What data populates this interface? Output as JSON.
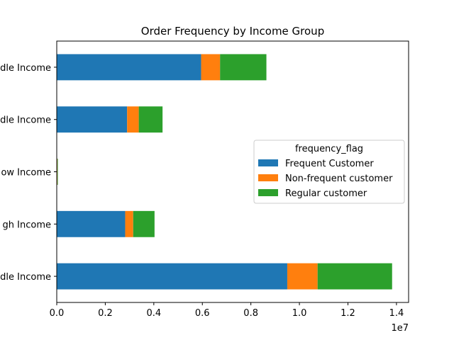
{
  "chart_data": {
    "type": "bar",
    "orientation": "horizontal",
    "stacked": true,
    "title": "Order Frequency by Income Group",
    "xlabel": "",
    "ylabel": "",
    "x_offset_label": "1e7",
    "xlim": [
      0,
      14500000
    ],
    "x_ticks": [
      0,
      2000000,
      4000000,
      6000000,
      8000000,
      10000000,
      12000000,
      14000000
    ],
    "x_tick_labels": [
      "0.0",
      "0.2",
      "0.4",
      "0.6",
      "0.8",
      "1.0",
      "1.2",
      "1.4"
    ],
    "grid": false,
    "categories": [
      "dle Income",
      "gh Income",
      "ow Income",
      "dle Income",
      "dle Income"
    ],
    "series": [
      {
        "name": "Frequent Customer",
        "color": "#1f77b4",
        "values": [
          9500000,
          2820000,
          20000,
          2900000,
          5950000
        ]
      },
      {
        "name": "Non-frequent customer",
        "color": "#ff7f0e",
        "values": [
          1250000,
          330000,
          8000,
          480000,
          780000
        ]
      },
      {
        "name": "Regular customer",
        "color": "#2ca02c",
        "values": [
          3070000,
          880000,
          5000,
          980000,
          1910000
        ]
      }
    ],
    "legend": {
      "title": "frequency_flag",
      "placement": "center-right"
    }
  }
}
